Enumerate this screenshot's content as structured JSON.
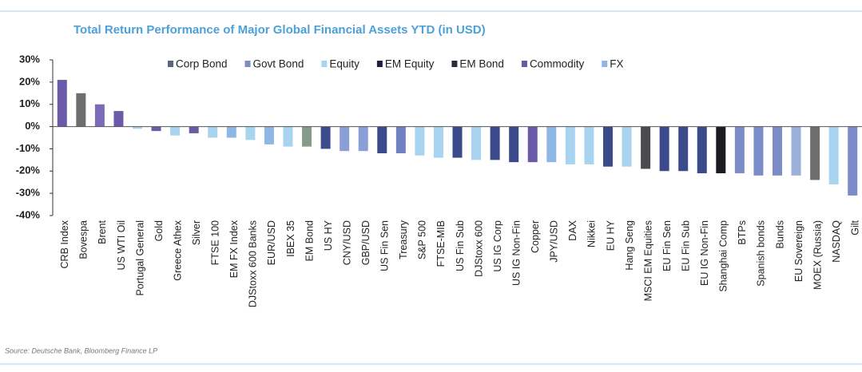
{
  "chart_data": {
    "type": "bar",
    "title": "Total Return Performance of Major Global Financial Assets YTD (in USD)",
    "source": "Source: Deutsche Bank, Bloomberg Finance LP",
    "categories": [
      "CRB Index",
      "Bovespa",
      "Brent",
      "US WTI Oil",
      "Portugal General",
      "Gold",
      "Greece Athex",
      "Silver",
      "FTSE 100",
      "EM FX Index",
      "DJStoxx 600 Banks",
      "EUR/USD",
      "IBEX 35",
      "EM Bond",
      "US HY",
      "CNY/USD",
      "GBP/USD",
      "US Fin Sen",
      "Treasury",
      "S&P 500",
      "FTSE-MIB",
      "US Fin Sub",
      "DJStoxx 600",
      "US IG Corp",
      "US IG Non-Fin",
      "Copper",
      "JPY/USD",
      "DAX",
      "Nikkei",
      "EU HY",
      "Hang Seng",
      "MSCI EM Equities",
      "EU Fin Sen",
      "EU Fin Sub",
      "EU IG Non-Fin",
      "Shanghai Comp",
      "BTPs",
      "Spanish bonds",
      "Bunds",
      "EU Sovereign",
      "MOEX (Russia)",
      "NASDAQ",
      "Gilt"
    ],
    "values": [
      21,
      15,
      10,
      7,
      -1,
      -2,
      -4,
      -3,
      -5,
      -5,
      -6,
      -8,
      -9,
      -9,
      -10,
      -11,
      -11,
      -12,
      -12,
      -13,
      -14,
      -14,
      -15,
      -15,
      -16,
      -16,
      -16,
      -17,
      -17,
      -18,
      -18,
      -19,
      -20,
      -20,
      -21,
      -21,
      -21,
      -22,
      -22,
      -22,
      -24,
      -26,
      -31
    ],
    "colors": [
      "#6a5aa8",
      "#6e6e6e",
      "#7a6ab8",
      "#6a5aa8",
      "#a9d4f0",
      "#6a5aa8",
      "#a9d4f0",
      "#6a5aa8",
      "#a9d4f0",
      "#8fb7e6",
      "#a9d4f0",
      "#8fb7e6",
      "#a9d4f0",
      "#8a9a8a",
      "#3a4a8a",
      "#8a9ed8",
      "#8a9ed8",
      "#3a4a8a",
      "#7080c0",
      "#a9d4f0",
      "#a9d4f0",
      "#3a4a8a",
      "#a9d4f0",
      "#3a4a8a",
      "#3a4a8a",
      "#6a5aa8",
      "#8fb7e6",
      "#a9d4f0",
      "#a9d4f0",
      "#3a4a8a",
      "#a9d4f0",
      "#4a4a50",
      "#3a4a8a",
      "#3a4a8a",
      "#3a4a8a",
      "#1b1b22",
      "#7b8cc8",
      "#7b8cc8",
      "#7b8cc8",
      "#9ab0d8",
      "#6e6e6e",
      "#a9d4f0",
      "#7b8cc8"
    ],
    "legend": [
      {
        "name": "Corp Bond",
        "color": "#5b6680"
      },
      {
        "name": "Govt Bond",
        "color": "#7b8cc8"
      },
      {
        "name": "Equity",
        "color": "#a9d4f0"
      },
      {
        "name": "EM Equity",
        "color": "#1b2240"
      },
      {
        "name": "EM Bond",
        "color": "#2a2a3a"
      },
      {
        "name": "Commodity",
        "color": "#6a5aa0"
      },
      {
        "name": "FX",
        "color": "#8fb7e6"
      }
    ],
    "ylim": [
      -40,
      30
    ],
    "yticks": [
      {
        "value": 30,
        "label": "30%"
      },
      {
        "value": 20,
        "label": "20%"
      },
      {
        "value": 10,
        "label": "10%"
      },
      {
        "value": 0,
        "label": "0%"
      },
      {
        "value": -10,
        "label": "-10%"
      },
      {
        "value": -20,
        "label": "-20%"
      },
      {
        "value": -30,
        "label": "-30%"
      },
      {
        "value": -40,
        "label": "-40%"
      }
    ]
  }
}
